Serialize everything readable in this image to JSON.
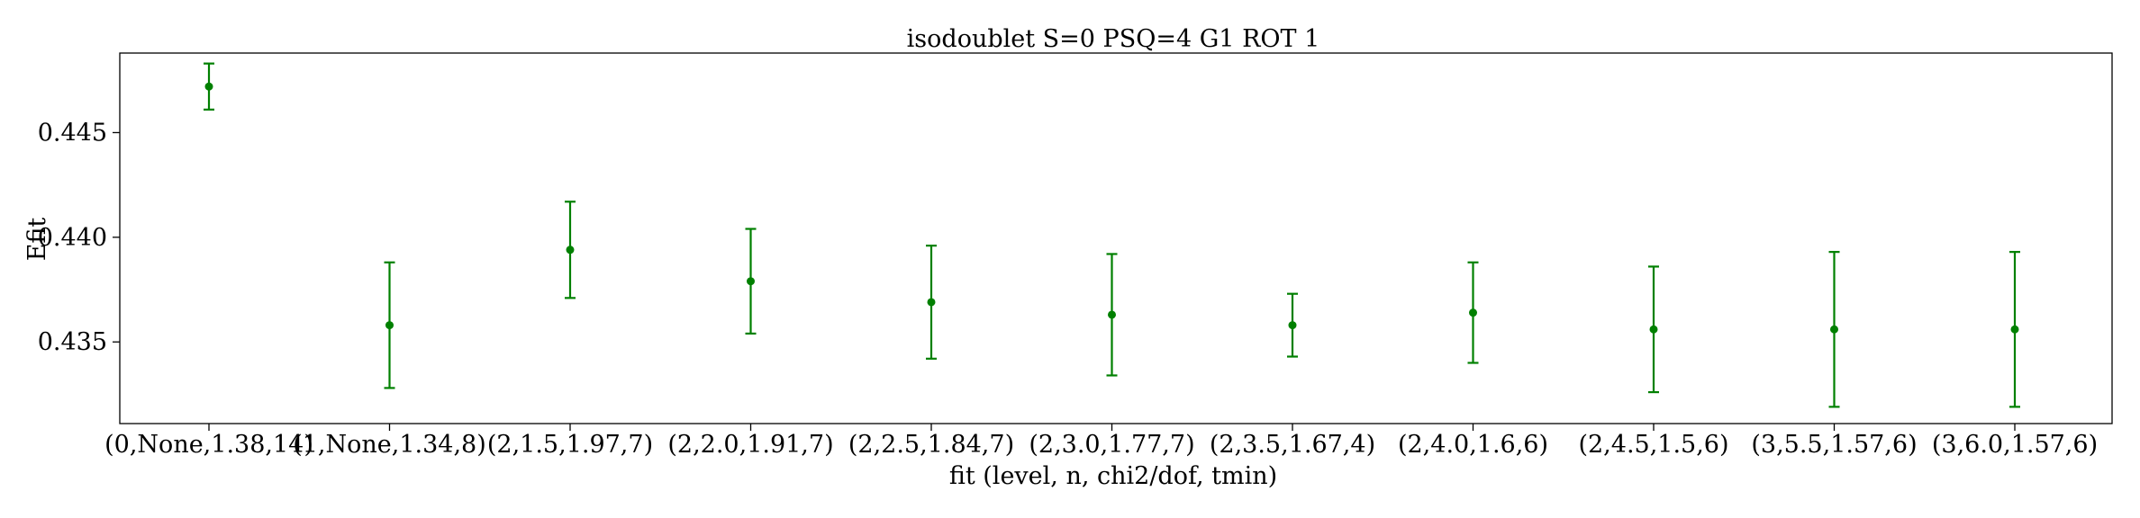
{
  "chart_data": {
    "type": "scatter",
    "title": "isodoublet S=0 PSQ=4 G1 ROT 1",
    "xlabel": "fit (level, n, chi2/dof, tmin)",
    "ylabel": "Efit",
    "categories": [
      "(0,None,1.38,14)",
      "(1,None,1.34,8)",
      "(2,1.5,1.97,7)",
      "(2,2.0,1.91,7)",
      "(2,2.5,1.84,7)",
      "(2,3.0,1.77,7)",
      "(2,3.5,1.67,4)",
      "(2,4.0,1.6,6)",
      "(2,4.5,1.5,6)",
      "(3,5.5,1.57,6)",
      "(3,6.0,1.57,6)"
    ],
    "values": [
      0.4472,
      0.4358,
      0.4394,
      0.4379,
      0.4369,
      0.4363,
      0.4358,
      0.4364,
      0.4356,
      0.4356,
      0.4356
    ],
    "errors": [
      0.0011,
      0.003,
      0.0023,
      0.0025,
      0.0027,
      0.0029,
      0.0015,
      0.0024,
      0.003,
      0.0037,
      0.0037
    ],
    "yticks": [
      "0.435",
      "0.440",
      "0.445"
    ],
    "ylim": [
      0.4311,
      0.4488
    ],
    "color": "#008000",
    "grid": false
  }
}
